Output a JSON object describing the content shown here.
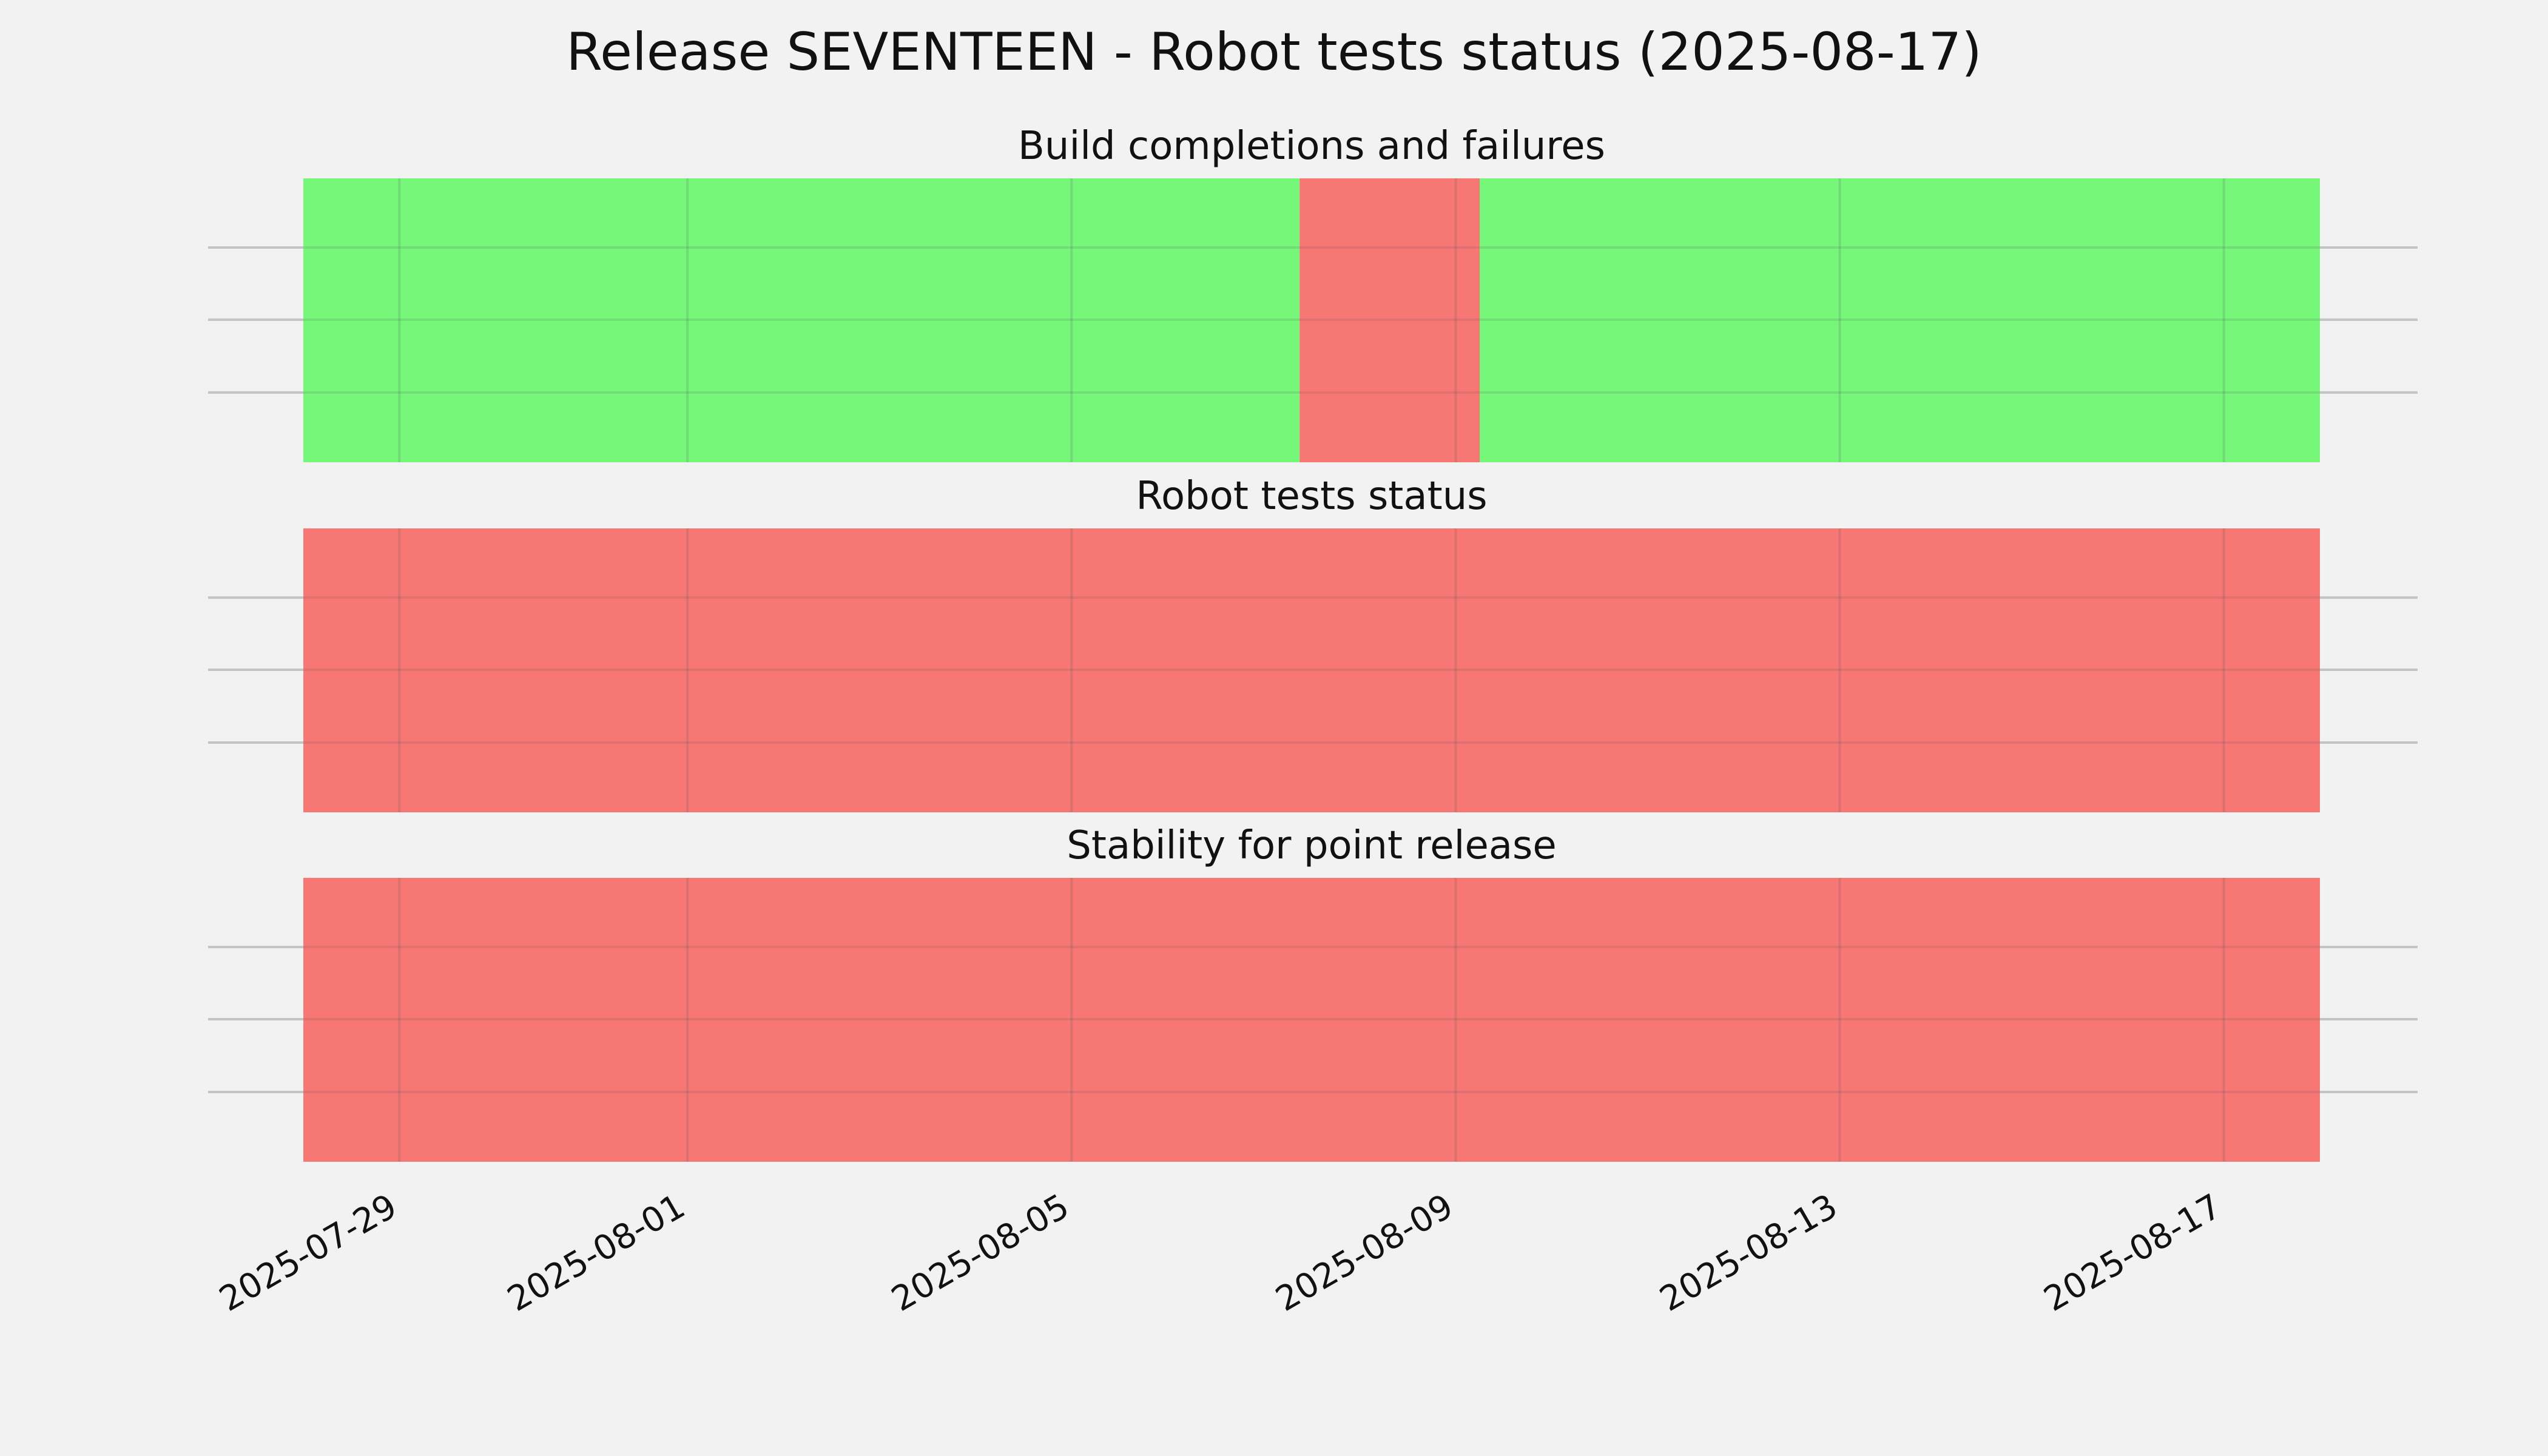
{
  "chart_data": {
    "type": "status-timeline",
    "title": "Release SEVENTEEN - Robot tests status (2025-08-17)",
    "xlim": [
      "2025-07-28",
      "2025-08-18"
    ],
    "x_ticks": [
      "2025-07-29",
      "2025-08-01",
      "2025-08-05",
      "2025-08-09",
      "2025-08-13",
      "2025-08-17"
    ],
    "grid": true,
    "status_colors": {
      "pass": "#76f77a",
      "fail": "#f77775"
    },
    "panels": [
      {
        "title": "Build completions and failures",
        "segments": [
          {
            "start": "2025-07-27T03:00",
            "end": "2025-08-07T09:00",
            "status": "pass"
          },
          {
            "start": "2025-08-07T09:00",
            "end": "2025-08-09T06:00",
            "status": "fail"
          },
          {
            "start": "2025-08-09T06:00",
            "end": "2025-08-18T06:00",
            "status": "pass"
          }
        ]
      },
      {
        "title": "Robot tests status",
        "segments": [
          {
            "start": "2025-07-27T03:00",
            "end": "2025-08-18T06:00",
            "status": "fail"
          }
        ]
      },
      {
        "title": "Stability for point release",
        "segments": [
          {
            "start": "2025-07-27T03:00",
            "end": "2025-08-18T06:00",
            "status": "fail"
          }
        ]
      }
    ]
  }
}
